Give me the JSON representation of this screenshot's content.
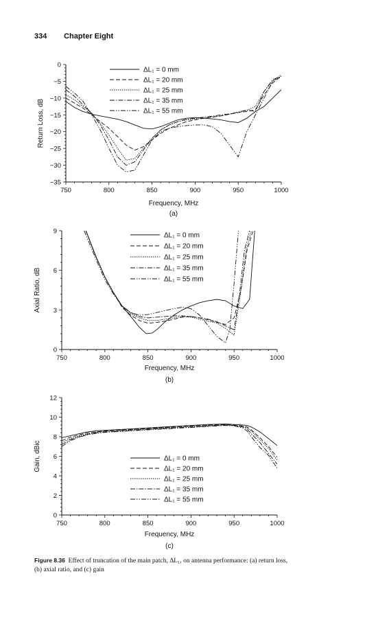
{
  "page": {
    "number": "334",
    "chapter": "Chapter Eight"
  },
  "caption": {
    "label": "Figure 8.36",
    "text": "Effect of truncation of the main patch, ΔL₁, on antenna performance: (a) return loss, (b) axial ratio, and (c) gain"
  },
  "chart_data": [
    {
      "type": "line",
      "panel_label": "(a)",
      "xlabel": "Frequency, MHz",
      "ylabel": "Return Loss, dB",
      "xlim": [
        750,
        1000
      ],
      "ylim": [
        -35,
        0
      ],
      "xticks": [
        750,
        800,
        850,
        900,
        950,
        1000
      ],
      "yticks": [
        0,
        -5,
        -10,
        -15,
        -20,
        -25,
        -30,
        -35
      ],
      "yticklabels": [
        "0",
        "−5",
        "−10",
        "−15",
        "−20",
        "−25",
        "−30",
        "−35"
      ],
      "legend_position": "top-center",
      "series": [
        {
          "name": "ΔL₁ = 0 mm",
          "x": [
            750,
            760,
            770,
            780,
            790,
            800,
            810,
            820,
            830,
            840,
            850,
            860,
            870,
            880,
            890,
            900,
            910,
            920,
            930,
            940,
            950,
            960,
            970,
            980,
            990,
            1000
          ],
          "y": [
            -11,
            -12.8,
            -14,
            -14.8,
            -15.3,
            -15.8,
            -16.3,
            -17,
            -18,
            -19,
            -19.2,
            -18.5,
            -17.5,
            -16.5,
            -16,
            -15.8,
            -16,
            -16.2,
            -16.5,
            -17,
            -17.3,
            -16,
            -14,
            -12.5,
            -10,
            -7.5
          ]
        },
        {
          "name": "ΔL₁ = 20 mm",
          "x": [
            750,
            760,
            770,
            780,
            790,
            800,
            810,
            820,
            830,
            840,
            850,
            860,
            870,
            880,
            890,
            900,
            910,
            920,
            930,
            940,
            950,
            960,
            970,
            980,
            990,
            1000
          ],
          "y": [
            -10,
            -11.5,
            -13,
            -15,
            -17,
            -19,
            -21.5,
            -24,
            -25.5,
            -24.5,
            -22.5,
            -20.5,
            -19,
            -18,
            -17,
            -16.5,
            -16,
            -15.7,
            -15.3,
            -14.8,
            -14.3,
            -14,
            -13.5,
            -9,
            -5.5,
            -3.5
          ]
        },
        {
          "name": "ΔL₁ = 25 mm",
          "x": [
            750,
            760,
            770,
            780,
            790,
            800,
            810,
            820,
            830,
            840,
            850,
            860,
            870,
            880,
            890,
            900,
            910,
            920,
            930,
            940,
            950,
            960,
            970,
            980,
            990,
            1000
          ],
          "y": [
            -9,
            -10.5,
            -12.5,
            -14.5,
            -17.5,
            -21,
            -25,
            -28.5,
            -28,
            -25,
            -22,
            -19.5,
            -18,
            -17,
            -16.5,
            -16.2,
            -16,
            -15.6,
            -15.3,
            -14.8,
            -14.2,
            -13.7,
            -12.5,
            -8,
            -5,
            -3.5
          ]
        },
        {
          "name": "ΔL₁ = 35 mm",
          "x": [
            750,
            760,
            770,
            780,
            790,
            800,
            810,
            820,
            830,
            840,
            850,
            860,
            870,
            880,
            890,
            900,
            910,
            920,
            930,
            940,
            950,
            960,
            970,
            980,
            990,
            1000
          ],
          "y": [
            -7.5,
            -9.5,
            -12,
            -14.5,
            -18,
            -22.5,
            -27.5,
            -30,
            -29,
            -25.5,
            -22,
            -19.5,
            -18,
            -17,
            -16.3,
            -16,
            -15.7,
            -15.4,
            -15,
            -14.7,
            -14.2,
            -13.5,
            -14,
            -8,
            -4.5,
            -3.5
          ]
        },
        {
          "name": "ΔL₁ = 55 mm",
          "x": [
            750,
            760,
            770,
            780,
            790,
            800,
            810,
            820,
            830,
            840,
            850,
            860,
            870,
            880,
            890,
            900,
            910,
            920,
            930,
            940,
            950,
            960,
            970,
            980,
            990,
            1000
          ],
          "y": [
            -6.5,
            -8.5,
            -11,
            -15,
            -19.5,
            -25,
            -30,
            -32,
            -31.5,
            -27,
            -22.5,
            -20,
            -19,
            -18.5,
            -18.2,
            -18,
            -18,
            -18.5,
            -20.5,
            -24,
            -27.5,
            -20,
            -15,
            -10,
            -5,
            -3
          ]
        }
      ]
    },
    {
      "type": "line",
      "panel_label": "(b)",
      "xlabel": "Frequency, MHz",
      "ylabel": "Axial Ratio, dB",
      "xlim": [
        750,
        1000
      ],
      "ylim": [
        0,
        9
      ],
      "xticks": [
        750,
        800,
        850,
        900,
        950,
        1000
      ],
      "yticks": [
        0,
        3,
        6,
        9
      ],
      "yticklabels": [
        "0",
        "3",
        "6",
        "9"
      ],
      "legend_position": "top-center",
      "series": [
        {
          "name": "ΔL₁ = 0 mm",
          "x": [
            778,
            790,
            800,
            810,
            820,
            830,
            840,
            848,
            855,
            862,
            870,
            880,
            890,
            900,
            910,
            920,
            930,
            940,
            950,
            960,
            968,
            974
          ],
          "y": [
            9,
            7,
            5.5,
            4.3,
            3.3,
            2.5,
            1.7,
            1.2,
            1.25,
            1.6,
            2.1,
            2.6,
            3.0,
            3.3,
            3.55,
            3.7,
            3.8,
            3.7,
            3.3,
            3.1,
            3.8,
            9
          ]
        },
        {
          "name": "ΔL₁ = 20 mm",
          "x": [
            778,
            790,
            800,
            810,
            820,
            830,
            840,
            850,
            860,
            870,
            880,
            890,
            900,
            910,
            920,
            930,
            940,
            950,
            958,
            965,
            972
          ],
          "y": [
            9,
            7,
            5.5,
            4.3,
            3.2,
            2.6,
            2.2,
            2.0,
            2.05,
            2.15,
            2.3,
            2.45,
            2.5,
            2.4,
            2.25,
            2.05,
            1.9,
            2.4,
            4.5,
            7.5,
            9
          ]
        },
        {
          "name": "ΔL₁ = 25 mm",
          "x": [
            778,
            790,
            800,
            810,
            820,
            830,
            840,
            850,
            860,
            870,
            880,
            890,
            900,
            910,
            920,
            930,
            940,
            950,
            957,
            964,
            970
          ],
          "y": [
            9,
            7,
            5.5,
            4.3,
            3.3,
            2.7,
            2.4,
            2.2,
            2.2,
            2.3,
            2.4,
            2.5,
            2.45,
            2.3,
            2.15,
            2.0,
            1.6,
            1.1,
            4,
            7.5,
            9
          ]
        },
        {
          "name": "ΔL₁ = 35 mm",
          "x": [
            778,
            790,
            800,
            810,
            820,
            830,
            840,
            850,
            860,
            870,
            880,
            890,
            900,
            910,
            920,
            930,
            940,
            950,
            956,
            962,
            968
          ],
          "y": [
            9,
            7,
            5.5,
            4.3,
            3.3,
            2.8,
            2.5,
            2.4,
            2.45,
            2.5,
            2.55,
            2.55,
            2.5,
            2.4,
            2.3,
            2.1,
            1.8,
            1.5,
            4,
            7.5,
            9
          ]
        },
        {
          "name": "ΔL₁ = 55 mm",
          "x": [
            776,
            790,
            800,
            810,
            820,
            830,
            840,
            850,
            860,
            870,
            880,
            890,
            900,
            910,
            920,
            930,
            940,
            945,
            950,
            955
          ],
          "y": [
            9,
            6.8,
            5.3,
            4.2,
            3.3,
            2.8,
            2.6,
            2.65,
            2.8,
            2.95,
            3.1,
            3.2,
            3.1,
            2.6,
            1.8,
            1.0,
            0.5,
            1.5,
            5,
            9
          ]
        }
      ]
    },
    {
      "type": "line",
      "panel_label": "(c)",
      "xlabel": "Frequency, MHz",
      "ylabel": "Gain, dBic",
      "xlim": [
        750,
        1000
      ],
      "ylim": [
        0,
        12
      ],
      "xticks": [
        750,
        800,
        850,
        900,
        950,
        1000
      ],
      "yticks": [
        0,
        2,
        4,
        6,
        8,
        10,
        12
      ],
      "yticklabels": [
        "0",
        "2",
        "4",
        "6",
        "8",
        "10",
        "12"
      ],
      "legend_position": "center",
      "series": [
        {
          "name": "ΔL₁ = 0 mm",
          "x": [
            750,
            760,
            770,
            780,
            790,
            800,
            820,
            840,
            860,
            880,
            900,
            920,
            940,
            950,
            960,
            965,
            970,
            980,
            990,
            1000
          ],
          "y": [
            7.9,
            8.1,
            8.3,
            8.5,
            8.6,
            8.65,
            8.75,
            8.85,
            8.95,
            9.05,
            9.15,
            9.25,
            9.3,
            9.25,
            9.2,
            9.15,
            9.0,
            8.5,
            7.8,
            7.1
          ]
        },
        {
          "name": "ΔL₁ = 20 mm",
          "x": [
            750,
            760,
            770,
            780,
            790,
            800,
            820,
            840,
            860,
            880,
            900,
            920,
            940,
            950,
            960,
            965,
            970,
            980,
            990,
            1000
          ],
          "y": [
            7.6,
            7.95,
            8.2,
            8.4,
            8.5,
            8.6,
            8.7,
            8.8,
            8.9,
            9.0,
            9.1,
            9.2,
            9.25,
            9.2,
            9.1,
            9.0,
            8.7,
            7.9,
            7.0,
            5.9
          ]
        },
        {
          "name": "ΔL₁ = 25 mm",
          "x": [
            750,
            760,
            770,
            780,
            790,
            800,
            820,
            840,
            860,
            880,
            900,
            920,
            940,
            950,
            960,
            965,
            970,
            980,
            990,
            1000
          ],
          "y": [
            7.4,
            7.8,
            8.1,
            8.3,
            8.45,
            8.55,
            8.65,
            8.75,
            8.85,
            8.95,
            9.05,
            9.15,
            9.2,
            9.15,
            9.05,
            8.9,
            8.6,
            7.7,
            6.8,
            5.6
          ]
        },
        {
          "name": "ΔL₁ = 35 mm",
          "x": [
            750,
            760,
            770,
            780,
            790,
            800,
            820,
            840,
            860,
            880,
            900,
            920,
            940,
            950,
            960,
            965,
            970,
            980,
            990,
            1000
          ],
          "y": [
            7.2,
            7.7,
            8.0,
            8.25,
            8.4,
            8.5,
            8.6,
            8.7,
            8.8,
            8.9,
            9.0,
            9.1,
            9.2,
            9.15,
            9.0,
            8.8,
            8.3,
            7.4,
            6.3,
            5.2
          ]
        },
        {
          "name": "ΔL₁ = 55 mm",
          "x": [
            750,
            760,
            770,
            780,
            790,
            800,
            820,
            840,
            860,
            880,
            900,
            920,
            940,
            950,
            960,
            965,
            970,
            980,
            990,
            1000
          ],
          "y": [
            7.0,
            7.6,
            7.95,
            8.2,
            8.35,
            8.45,
            8.55,
            8.65,
            8.75,
            8.85,
            8.95,
            9.05,
            9.15,
            9.1,
            8.9,
            8.6,
            8.0,
            6.9,
            6.1,
            4.8
          ]
        }
      ]
    }
  ]
}
